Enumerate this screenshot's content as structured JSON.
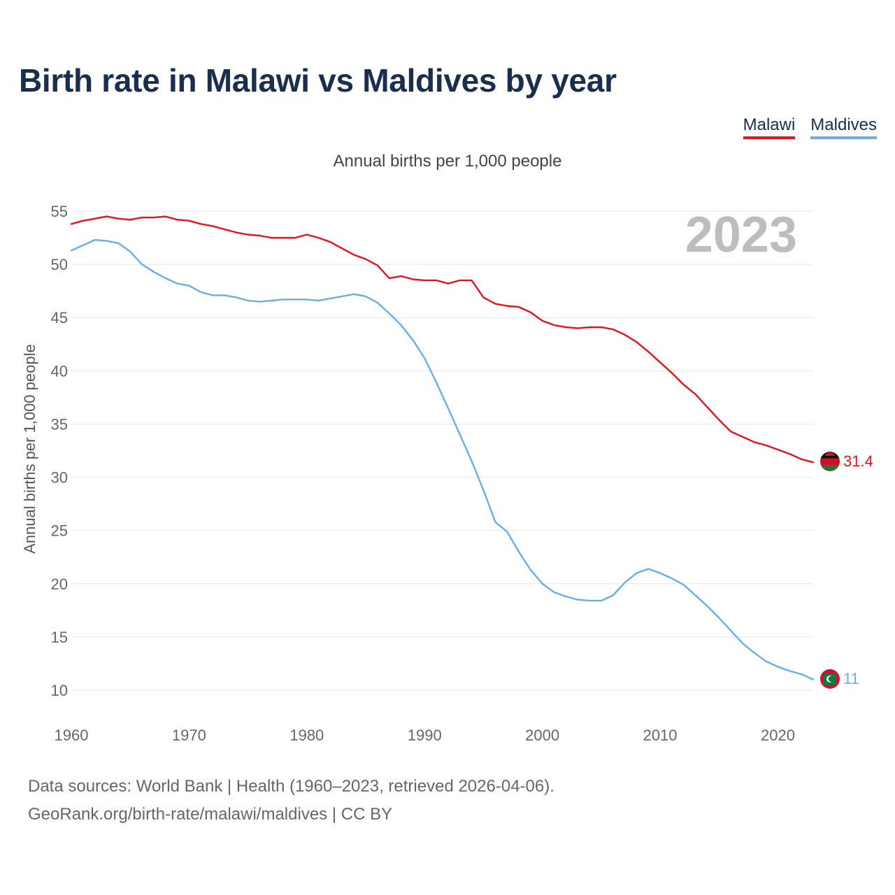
{
  "title": "Birth rate in Malawi vs Maldives by year",
  "legend": [
    {
      "label": "Malawi",
      "color": "#e8121a"
    },
    {
      "label": "Maldives",
      "color": "#6aade8"
    }
  ],
  "subtitle": "Annual births per 1,000 people",
  "footer": {
    "line1": "Data sources: World Bank | Health (1960–2023, retrieved 2026-04-06).",
    "line2": "GeoRank.org/birth-rate/malawi/maldives | CC BY"
  },
  "chart_data": {
    "type": "line",
    "title": "Birth rate in Malawi vs Maldives by year",
    "xlabel": "",
    "ylabel": "Annual births per 1,000 people",
    "year_label": "2023",
    "xlim": [
      1960,
      2023
    ],
    "ylim": [
      10,
      55
    ],
    "xticks": [
      1960,
      1970,
      1980,
      1990,
      2000,
      2010,
      2020
    ],
    "yticks": [
      10,
      15,
      20,
      25,
      30,
      35,
      40,
      45,
      50,
      55
    ],
    "grid": true,
    "x": [
      1960,
      1961,
      1962,
      1963,
      1964,
      1965,
      1966,
      1967,
      1968,
      1969,
      1970,
      1971,
      1972,
      1973,
      1974,
      1975,
      1976,
      1977,
      1978,
      1979,
      1980,
      1981,
      1982,
      1983,
      1984,
      1985,
      1986,
      1987,
      1988,
      1989,
      1990,
      1991,
      1992,
      1993,
      1994,
      1995,
      1996,
      1997,
      1998,
      1999,
      2000,
      2001,
      2002,
      2003,
      2004,
      2005,
      2006,
      2007,
      2008,
      2009,
      2010,
      2011,
      2012,
      2013,
      2014,
      2015,
      2016,
      2017,
      2018,
      2019,
      2020,
      2021,
      2022,
      2023
    ],
    "series": [
      {
        "name": "Malawi",
        "color": "#e8121a",
        "end_label": "31.4",
        "values": [
          53.8,
          54.1,
          54.3,
          54.5,
          54.3,
          54.2,
          54.4,
          54.4,
          54.5,
          54.2,
          54.1,
          53.8,
          53.6,
          53.3,
          53.0,
          52.8,
          52.7,
          52.5,
          52.5,
          52.5,
          52.8,
          52.5,
          52.1,
          51.5,
          50.9,
          50.5,
          49.9,
          48.7,
          48.9,
          48.6,
          48.5,
          48.5,
          48.2,
          48.5,
          48.5,
          46.9,
          46.3,
          46.1,
          46.0,
          45.5,
          44.7,
          44.3,
          44.1,
          44.0,
          44.1,
          44.1,
          43.9,
          43.4,
          42.7,
          41.8,
          40.8,
          39.8,
          38.7,
          37.8,
          36.6,
          35.4,
          34.3,
          33.8,
          33.3,
          33.0,
          32.6,
          32.2,
          31.7,
          31.4
        ]
      },
      {
        "name": "Maldives",
        "color": "#6aade8",
        "end_label": "11",
        "values": [
          51.3,
          51.8,
          52.3,
          52.2,
          52.0,
          51.2,
          50.0,
          49.3,
          48.7,
          48.2,
          48.0,
          47.4,
          47.1,
          47.1,
          46.9,
          46.6,
          46.5,
          46.6,
          46.7,
          46.7,
          46.7,
          46.6,
          46.8,
          47.0,
          47.2,
          47.0,
          46.4,
          45.4,
          44.3,
          42.9,
          41.2,
          38.9,
          36.5,
          34.0,
          31.5,
          28.8,
          25.8,
          24.9,
          23.0,
          21.3,
          20.0,
          19.2,
          18.8,
          18.5,
          18.4,
          18.4,
          18.9,
          20.1,
          21.0,
          21.4,
          21.0,
          20.5,
          19.9,
          18.9,
          17.9,
          16.8,
          15.6,
          14.4,
          13.5,
          12.7,
          12.2,
          11.8,
          11.5,
          11.0
        ]
      }
    ]
  }
}
